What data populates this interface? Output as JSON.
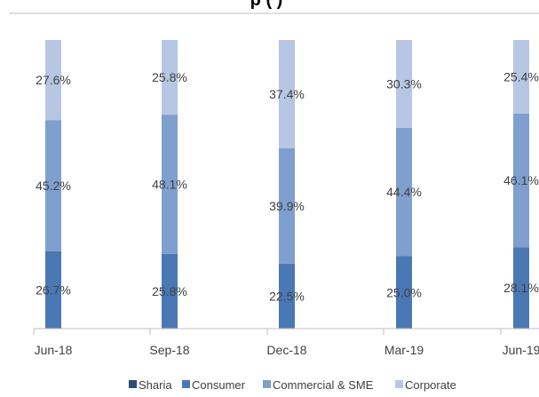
{
  "chart_data": {
    "type": "bar",
    "stacked": true,
    "percent_stacked": true,
    "title": "p (                    )",
    "categories": [
      "Jun-18",
      "Sep-18",
      "Dec-18",
      "Mar-19",
      "Jun-19"
    ],
    "series": [
      {
        "name": "Sharia",
        "color": "#2E4D7B",
        "values": [
          0,
          0,
          0,
          0,
          0
        ]
      },
      {
        "name": "Consumer",
        "color": "#4A78B5",
        "values": [
          26.7,
          25.8,
          22.5,
          25.0,
          28.1
        ]
      },
      {
        "name": "Commercial & SME",
        "color": "#7F9FCE",
        "values": [
          45.2,
          48.1,
          39.9,
          44.4,
          46.1
        ]
      },
      {
        "name": "Corporate",
        "color": "#B6C6E3",
        "values": [
          27.6,
          25.8,
          37.4,
          30.3,
          25.4
        ]
      }
    ],
    "data_labels": {
      "Consumer": [
        "26.7%",
        "25.8%",
        "22.5%",
        "25.0%",
        "28.1%"
      ],
      "Commercial & SME": [
        "45.2%",
        "48.1%",
        "39.9%",
        "44.4%",
        "46.1%"
      ],
      "Corporate": [
        "27.6%",
        "25.8%",
        "37.4%",
        "30.3%",
        "25.4%"
      ]
    },
    "ylim": [
      0,
      100
    ],
    "grid": false,
    "legend_position": "bottom"
  }
}
